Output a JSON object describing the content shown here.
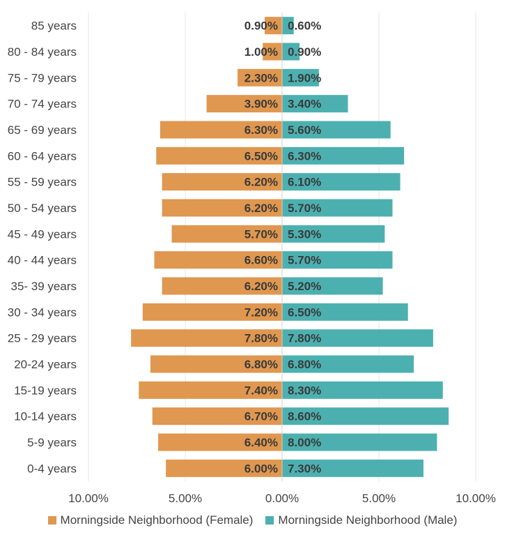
{
  "chart_data": {
    "type": "bar",
    "orientation": "horizontal-diverging",
    "title": "",
    "categories": [
      "85 years",
      "80 - 84 years",
      "75 - 79 years",
      "70 - 74 years",
      "65 - 69 years",
      "60 - 64 years",
      "55 - 59 years",
      "50 - 54 years",
      "45 - 49 years",
      "40 - 44 years",
      "35- 39 years",
      "30 - 34 years",
      "25 - 29 years",
      "20-24 years",
      "15-19 years",
      "10-14 years",
      "5-9 years",
      "0-4 years"
    ],
    "series": [
      {
        "name": "Morningside Neighborhood (Female)",
        "color": "#E0974F",
        "side": "left",
        "values": [
          0.9,
          1.0,
          2.3,
          3.9,
          6.3,
          6.5,
          6.2,
          6.2,
          5.7,
          6.6,
          6.2,
          7.2,
          7.8,
          6.8,
          7.4,
          6.7,
          6.4,
          6.0
        ],
        "labels": [
          "0.90%",
          "1.00%",
          "2.30%",
          "3.90%",
          "6.30%",
          "6.50%",
          "6.20%",
          "6.20%",
          "5.70%",
          "6.60%",
          "6.20%",
          "7.20%",
          "7.80%",
          "6.80%",
          "7.40%",
          "6.70%",
          "6.40%",
          "6.00%"
        ]
      },
      {
        "name": "Morningside Neighborhood (Male)",
        "color": "#4DB0B0",
        "side": "right",
        "values": [
          0.6,
          0.9,
          1.9,
          3.4,
          5.6,
          6.3,
          6.1,
          5.7,
          5.3,
          5.7,
          5.2,
          6.5,
          7.8,
          6.8,
          8.3,
          8.6,
          8.0,
          7.3
        ],
        "labels": [
          "0.60%",
          "0.90%",
          "1.90%",
          "3.40%",
          "5.60%",
          "6.30%",
          "6.10%",
          "5.70%",
          "5.30%",
          "5.70%",
          "5.20%",
          "6.50%",
          "7.80%",
          "6.80%",
          "8.30%",
          "8.60%",
          "8.00%",
          "7.30%"
        ]
      }
    ],
    "xlim": [
      -10,
      10
    ],
    "x_ticks": [
      -10,
      -5,
      0,
      5,
      10
    ],
    "x_tick_labels": [
      "10.00%",
      "5.00%",
      "0.00%",
      "5.00%",
      "10.00%"
    ],
    "xlabel": "",
    "ylabel": "",
    "grid": "vertical",
    "legend_position": "bottom"
  }
}
